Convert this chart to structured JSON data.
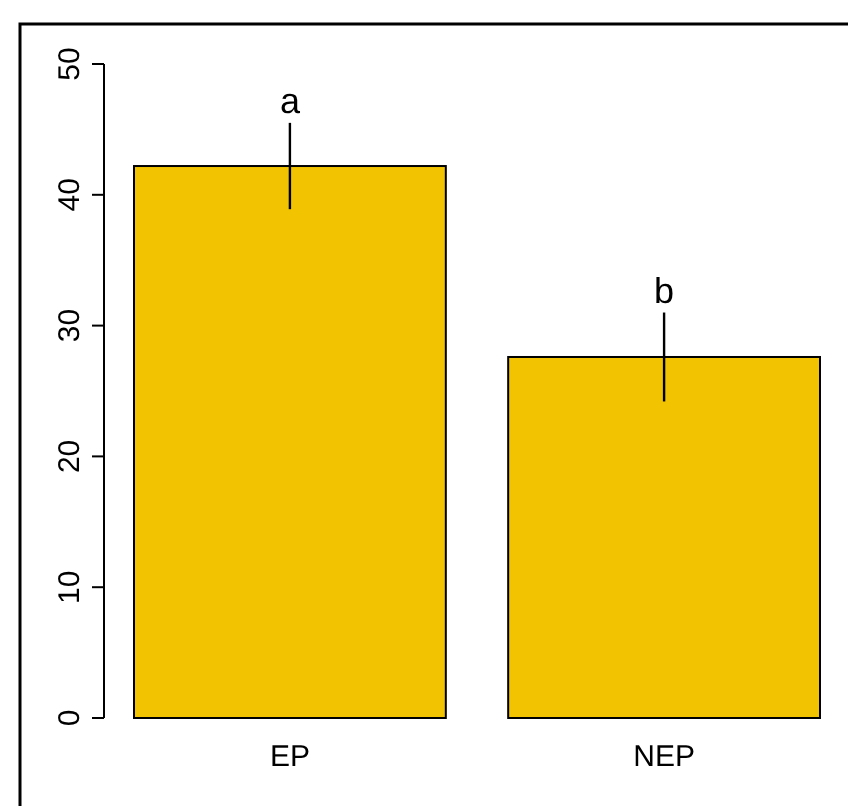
{
  "chart_data": {
    "type": "bar",
    "categories": [
      "EP",
      "NEP"
    ],
    "values": [
      42.2,
      27.6
    ],
    "errors": [
      3.3,
      3.4
    ],
    "color": "#f2c300",
    "ylim": [
      0,
      50
    ],
    "yticks": [
      0,
      10,
      20,
      30,
      40,
      50
    ],
    "grid": false,
    "annotations": [
      {
        "text": "a",
        "x": "EP",
        "y": 45.5
      },
      {
        "text": "b",
        "x": "NEP",
        "y": 31
      }
    ]
  }
}
